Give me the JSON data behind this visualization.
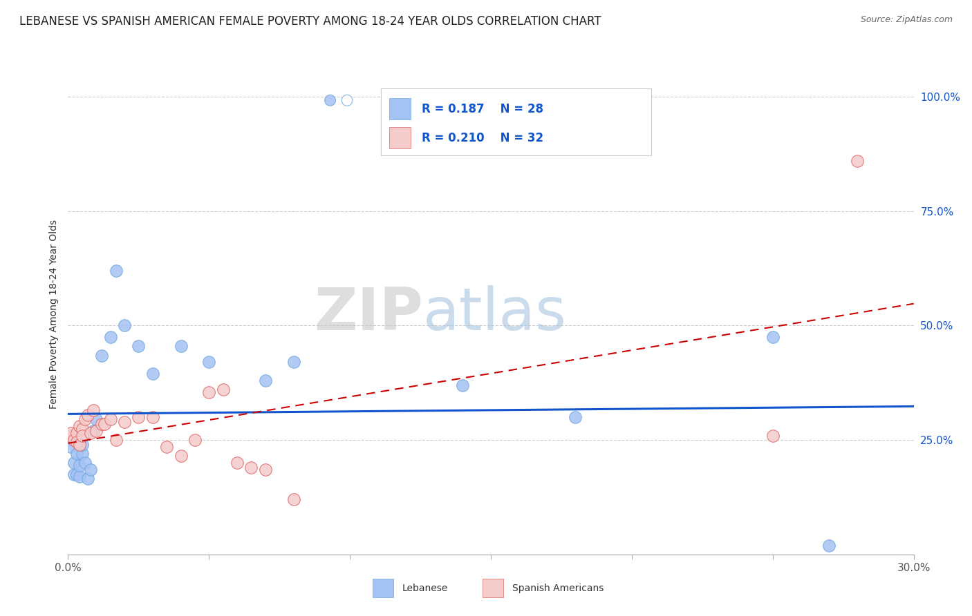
{
  "title": "LEBANESE VS SPANISH AMERICAN FEMALE POVERTY AMONG 18-24 YEAR OLDS CORRELATION CHART",
  "source": "Source: ZipAtlas.com",
  "ylabel": "Female Poverty Among 18-24 Year Olds",
  "xlim": [
    0.0,
    0.3
  ],
  "ylim": [
    0.0,
    1.05
  ],
  "xticks": [
    0.0,
    0.05,
    0.1,
    0.15,
    0.2,
    0.25,
    0.3
  ],
  "xticklabels": [
    "0.0%",
    "",
    "",
    "",
    "",
    "",
    "30.0%"
  ],
  "yticks_right": [
    0.0,
    0.25,
    0.5,
    0.75,
    1.0
  ],
  "yticklabels_right": [
    "",
    "25.0%",
    "50.0%",
    "75.0%",
    "100.0%"
  ],
  "grid_color": "#cccccc",
  "background_color": "#ffffff",
  "watermark_zip": "ZIP",
  "watermark_atlas": "atlas",
  "watermark_color_zip": "#c8c8c8",
  "watermark_color_atlas": "#a8c4e0",
  "lebanese_color": "#a4c2f4",
  "lebanese_edge": "#6fa8dc",
  "spanish_color": "#f4cccc",
  "spanish_edge": "#e06666",
  "lebanese_R": 0.187,
  "lebanese_N": 28,
  "spanish_R": 0.21,
  "spanish_N": 32,
  "lebanese_line_color": "#1155cc",
  "spanish_line_color": "#cc0000",
  "title_fontsize": 12,
  "legend_fontsize": 12,
  "lebanese_x": [
    0.001,
    0.002,
    0.002,
    0.003,
    0.003,
    0.004,
    0.004,
    0.005,
    0.005,
    0.006,
    0.007,
    0.008,
    0.009,
    0.01,
    0.012,
    0.015,
    0.017,
    0.02,
    0.025,
    0.03,
    0.04,
    0.05,
    0.07,
    0.08,
    0.14,
    0.18,
    0.25,
    0.27
  ],
  "lebanese_y": [
    0.235,
    0.2,
    0.175,
    0.22,
    0.175,
    0.17,
    0.195,
    0.22,
    0.24,
    0.2,
    0.165,
    0.185,
    0.27,
    0.295,
    0.435,
    0.475,
    0.62,
    0.5,
    0.455,
    0.395,
    0.455,
    0.42,
    0.38,
    0.42,
    0.37,
    0.3,
    0.475,
    0.02
  ],
  "spanish_x": [
    0.001,
    0.001,
    0.002,
    0.003,
    0.003,
    0.004,
    0.004,
    0.005,
    0.005,
    0.006,
    0.007,
    0.008,
    0.009,
    0.01,
    0.012,
    0.013,
    0.015,
    0.017,
    0.02,
    0.025,
    0.03,
    0.035,
    0.04,
    0.045,
    0.05,
    0.055,
    0.06,
    0.065,
    0.07,
    0.08,
    0.25,
    0.28
  ],
  "spanish_y": [
    0.26,
    0.265,
    0.25,
    0.265,
    0.245,
    0.28,
    0.24,
    0.275,
    0.26,
    0.295,
    0.305,
    0.265,
    0.315,
    0.27,
    0.285,
    0.285,
    0.295,
    0.25,
    0.29,
    0.3,
    0.3,
    0.235,
    0.215,
    0.25,
    0.355,
    0.36,
    0.2,
    0.19,
    0.185,
    0.12,
    0.26,
    0.86
  ]
}
